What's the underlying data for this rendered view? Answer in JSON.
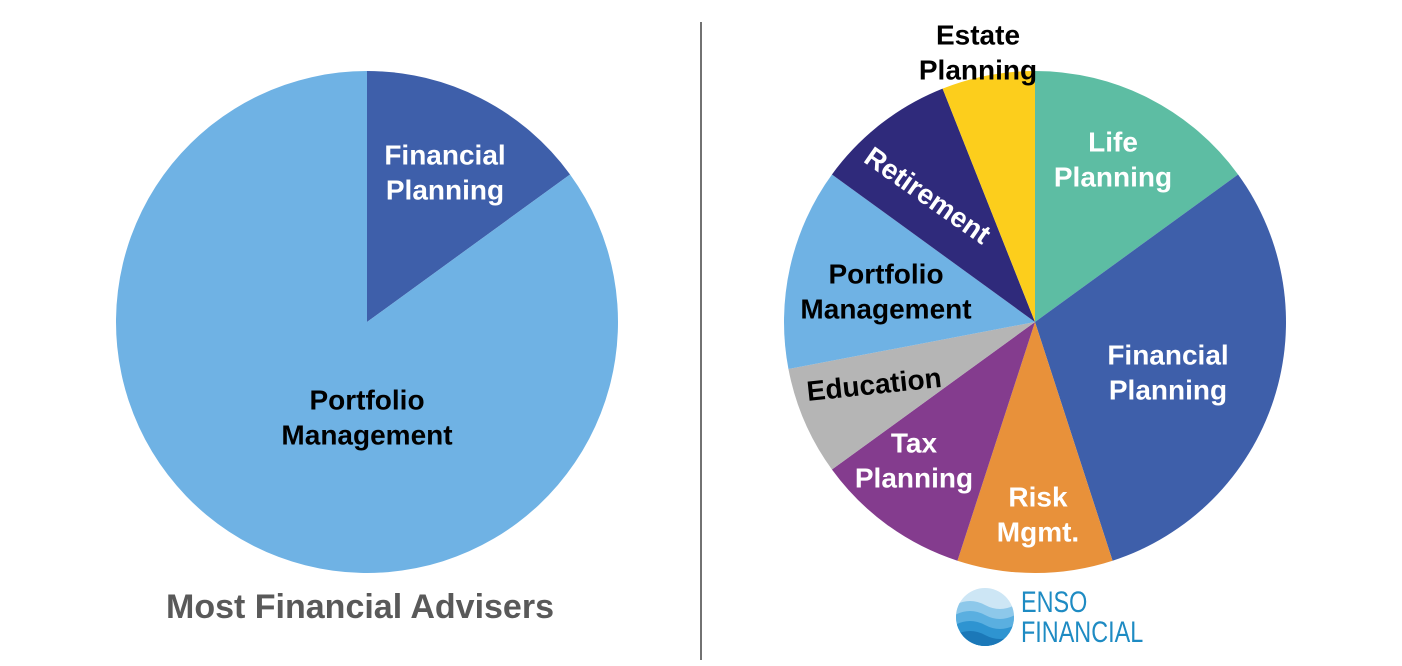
{
  "caption": "Most Financial Advisers",
  "logo": {
    "line1": "ENSO",
    "line2": "FINANCIAL",
    "color": "#1E8BC3"
  },
  "chart_data": [
    {
      "type": "pie",
      "title": "",
      "start": "12 o'clock, clockwise",
      "slices": [
        {
          "label": [
            "Financial",
            "Planning"
          ],
          "value": 15,
          "color": "#3E5FAA",
          "text_color": "#FFFFFF"
        },
        {
          "label": [
            "Portfolio",
            "Management"
          ],
          "value": 85,
          "color": "#6FB2E4",
          "text_color": "#000000"
        }
      ]
    },
    {
      "type": "pie",
      "title": "",
      "start": "12 o'clock, clockwise",
      "slices": [
        {
          "label": [
            "Life",
            "Planning"
          ],
          "value": 15,
          "color": "#5DBDA3",
          "text_color": "#FFFFFF"
        },
        {
          "label": [
            "Financial",
            "Planning"
          ],
          "value": 30,
          "color": "#3E5FAA",
          "text_color": "#FFFFFF"
        },
        {
          "label": [
            "Risk",
            "Mgmt."
          ],
          "value": 10,
          "color": "#E8913A",
          "text_color": "#FFFFFF"
        },
        {
          "label": [
            "Tax",
            "Planning"
          ],
          "value": 10,
          "color": "#843C8E",
          "text_color": "#FFFFFF"
        },
        {
          "label": [
            "Education"
          ],
          "value": 7,
          "color": "#B5B5B5",
          "text_color": "#000000"
        },
        {
          "label": [
            "Portfolio",
            "Management"
          ],
          "value": 13,
          "color": "#6FB2E4",
          "text_color": "#000000"
        },
        {
          "label": [
            "Retirement"
          ],
          "value": 9,
          "color": "#2F2A7B",
          "text_color": "#FFFFFF"
        },
        {
          "label": [
            "Estate",
            "Planning"
          ],
          "value": 6,
          "color": "#FCCE1C",
          "text_color": "#000000"
        }
      ]
    }
  ]
}
